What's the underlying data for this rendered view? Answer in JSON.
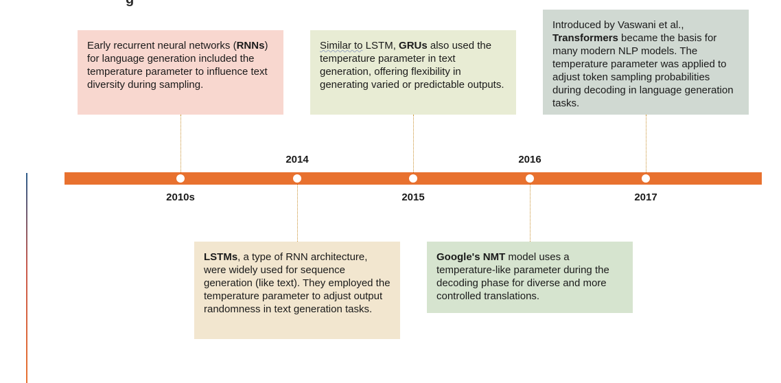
{
  "milestones": [
    {
      "year": "2010s",
      "segments": [
        {
          "text": "Early recurrent neural networks ("
        },
        {
          "text": "RNNs",
          "bold": true
        },
        {
          "text": ") for language generation included the temperature parameter to influence text diversity during sampling."
        }
      ]
    },
    {
      "year": "2014",
      "segments": [
        {
          "text": "LSTMs",
          "bold": true
        },
        {
          "text": ", a type of RNN architecture, were widely used for sequence generation (like text). They employed the temperature parameter to adjust output randomness in text generation tasks."
        }
      ]
    },
    {
      "year": "2015",
      "segments": [
        {
          "text": "Similar to",
          "squiggle": true
        },
        {
          "text": " LSTM, "
        },
        {
          "text": "GRUs",
          "bold": true
        },
        {
          "text": " also used the temperature parameter in text generation, offering flexibility in generating varied or predictable outputs."
        }
      ]
    },
    {
      "year": "2016",
      "segments": [
        {
          "text": "Google's NMT",
          "bold": true
        },
        {
          "text": " model uses a temperature-like parameter during the decoding phase for diverse and more controlled translations."
        }
      ]
    },
    {
      "year": "2017",
      "segments": [
        {
          "text": "Introduced by Vaswani et al., "
        },
        {
          "text": "Transformers",
          "bold": true
        },
        {
          "text": " became the basis for many modern NLP models. The temperature parameter was applied to adjust token sampling probabilities during decoding in language generation tasks."
        }
      ]
    }
  ],
  "colors": {
    "timeline": "#e8712f",
    "card_2010s": "#f8d7cf",
    "card_2014": "#f2e6cf",
    "card_2015": "#e8ecd4",
    "card_2016": "#d6e4cf",
    "card_2017": "#d0d9d2"
  }
}
